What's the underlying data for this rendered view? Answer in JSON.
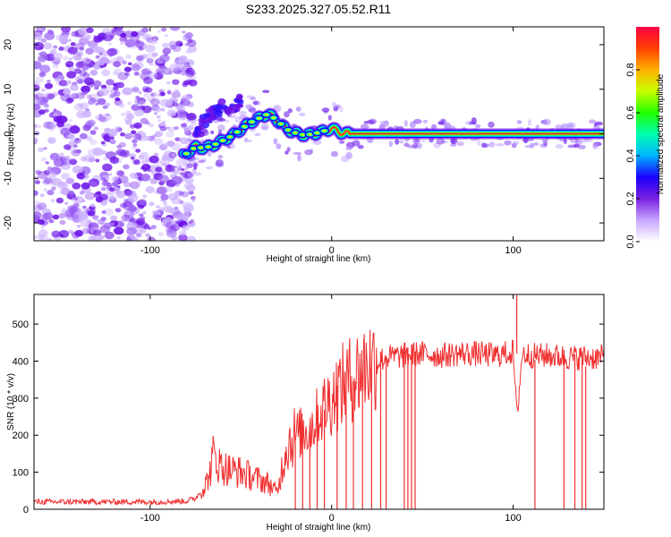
{
  "chart_data": [
    {
      "type": "heatmap",
      "title": "S233.2025.327.05.52.R11",
      "xlabel": "Height of straight line (km)",
      "ylabel": "Frequency (Hz)",
      "xlim": [
        -164,
        150
      ],
      "ylim": [
        -24,
        24
      ],
      "xticks": [
        -100,
        0,
        100
      ],
      "yticks": [
        -20,
        -10,
        0,
        10,
        20
      ],
      "colorbar": {
        "label": "Normalized spectral amplitude",
        "range": [
          0,
          1
        ],
        "ticks": [
          0.0,
          0.2,
          0.4,
          0.6,
          0.8
        ],
        "tick_labels": [
          "0.0",
          "0.2",
          "0.4",
          "0.6",
          "0.8"
        ],
        "colors": [
          "#ffffff",
          "#c9a6ff",
          "#7a1fe0",
          "#1a00ff",
          "#00b4ff",
          "#00ffb0",
          "#22ff00",
          "#c8ff00",
          "#ffb000",
          "#ff4000",
          "#ff0044"
        ]
      },
      "ridge": {
        "x": [
          -82,
          -75,
          -70,
          -65,
          -60,
          -55,
          -50,
          -45,
          -40,
          -35,
          -30,
          -25,
          -20,
          -15,
          -10,
          -5,
          0,
          5,
          10,
          20,
          40,
          60,
          80,
          100,
          120,
          150
        ],
        "y": [
          -5,
          -3,
          -3.2,
          -2.5,
          -1.5,
          -0.5,
          1,
          2.5,
          3.5,
          4.5,
          3,
          1,
          0.2,
          -0.3,
          0,
          0.5,
          1.2,
          0.3,
          0,
          0,
          0,
          0,
          0,
          0,
          0,
          0
        ]
      },
      "upper_branch": {
        "x": [
          -75,
          -70,
          -65,
          -60,
          -55,
          -50
        ],
        "y": [
          -1,
          3,
          5,
          6,
          6,
          7.5
        ]
      },
      "noise_region": {
        "x": [
          -164,
          -80
        ],
        "y": [
          -24,
          24
        ]
      },
      "grid": false
    },
    {
      "type": "line",
      "title": "",
      "xlabel": "Height of straight line (km)",
      "ylabel": "SNR (10 * v/v)",
      "xlim": [
        -164,
        150
      ],
      "ylim": [
        0,
        580
      ],
      "xticks": [
        -100,
        0,
        100
      ],
      "yticks": [
        0,
        100,
        200,
        300,
        400,
        500
      ],
      "color": "#f03030",
      "series": [
        {
          "x": [
            -164,
            -140,
            -120,
            -100,
            -80,
            -75,
            -70,
            -67,
            -65,
            -62,
            -58,
            -55,
            -50,
            -45,
            -40,
            -35,
            -30,
            -25,
            -22,
            -20,
            -15,
            -10,
            -5,
            0,
            5,
            10,
            15,
            20,
            25,
            30,
            40,
            50,
            60,
            70,
            80,
            90,
            95,
            100,
            102,
            105,
            110,
            120,
            130,
            140,
            150
          ],
          "y": [
            20,
            20,
            20,
            20,
            22,
            30,
            60,
            100,
            150,
            120,
            110,
            105,
            100,
            90,
            80,
            70,
            45,
            170,
            190,
            200,
            210,
            230,
            270,
            300,
            330,
            350,
            370,
            390,
            400,
            410,
            415,
            420,
            415,
            420,
            420,
            415,
            420,
            425,
            250,
            420,
            415,
            415,
            410,
            410,
            410
          ]
        }
      ],
      "dropouts_x": [
        -20,
        -16,
        -12,
        -8,
        -4,
        3,
        8,
        12,
        17,
        22,
        27,
        30,
        40,
        42,
        44,
        46,
        112,
        128,
        134,
        138,
        140
      ],
      "grid": false
    }
  ]
}
